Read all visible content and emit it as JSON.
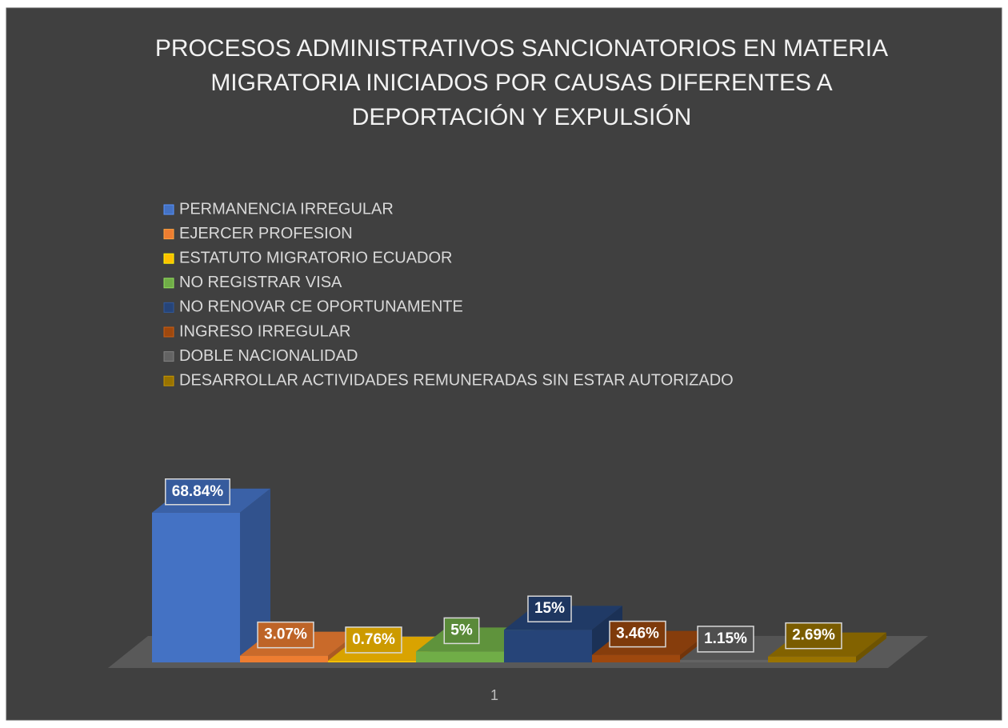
{
  "chart_data": {
    "type": "bar3d",
    "title": [
      "PROCESOS ADMINISTRATIVOS SANCIONATORIOS EN MATERIA",
      "MIGRATORIA INICIADOS POR CAUSAS DIFERENTES A",
      "DEPORTACIÓN Y EXPULSIÓN"
    ],
    "categories": [
      "1"
    ],
    "series": [
      {
        "name": "PERMANENCIA IRREGULAR",
        "color": "#4472c4",
        "values": [
          68.84
        ],
        "value_labels": [
          "68.84%"
        ]
      },
      {
        "name": "EJERCER PROFESION",
        "color": "#ed7d31",
        "values": [
          3.07
        ],
        "value_labels": [
          "3.07%"
        ]
      },
      {
        "name": "ESTATUTO MIGRATORIO ECUADOR",
        "color": "#ffc000",
        "values": [
          0.76
        ],
        "value_labels": [
          "0.76%"
        ]
      },
      {
        "name": "NO REGISTRAR VISA",
        "color": "#70ad47",
        "values": [
          5
        ],
        "value_labels": [
          "5%"
        ]
      },
      {
        "name": "NO RENOVAR CE OPORTUNAMENTE",
        "color": "#264478",
        "values": [
          15
        ],
        "value_labels": [
          "15%"
        ]
      },
      {
        "name": "INGRESO IRREGULAR",
        "color": "#9e480e",
        "values": [
          3.46
        ],
        "value_labels": [
          "3.46%"
        ]
      },
      {
        "name": "DOBLE NACIONALIDAD",
        "color": "#636363",
        "values": [
          1.15
        ],
        "value_labels": [
          "1.15%"
        ]
      },
      {
        "name": "DESARROLLAR ACTIVIDADES REMUNERADAS SIN ESTAR AUTORIZADO",
        "color": "#997300",
        "values": [
          2.69
        ],
        "value_labels": [
          "2.69%"
        ]
      }
    ],
    "legend": "top-left"
  }
}
